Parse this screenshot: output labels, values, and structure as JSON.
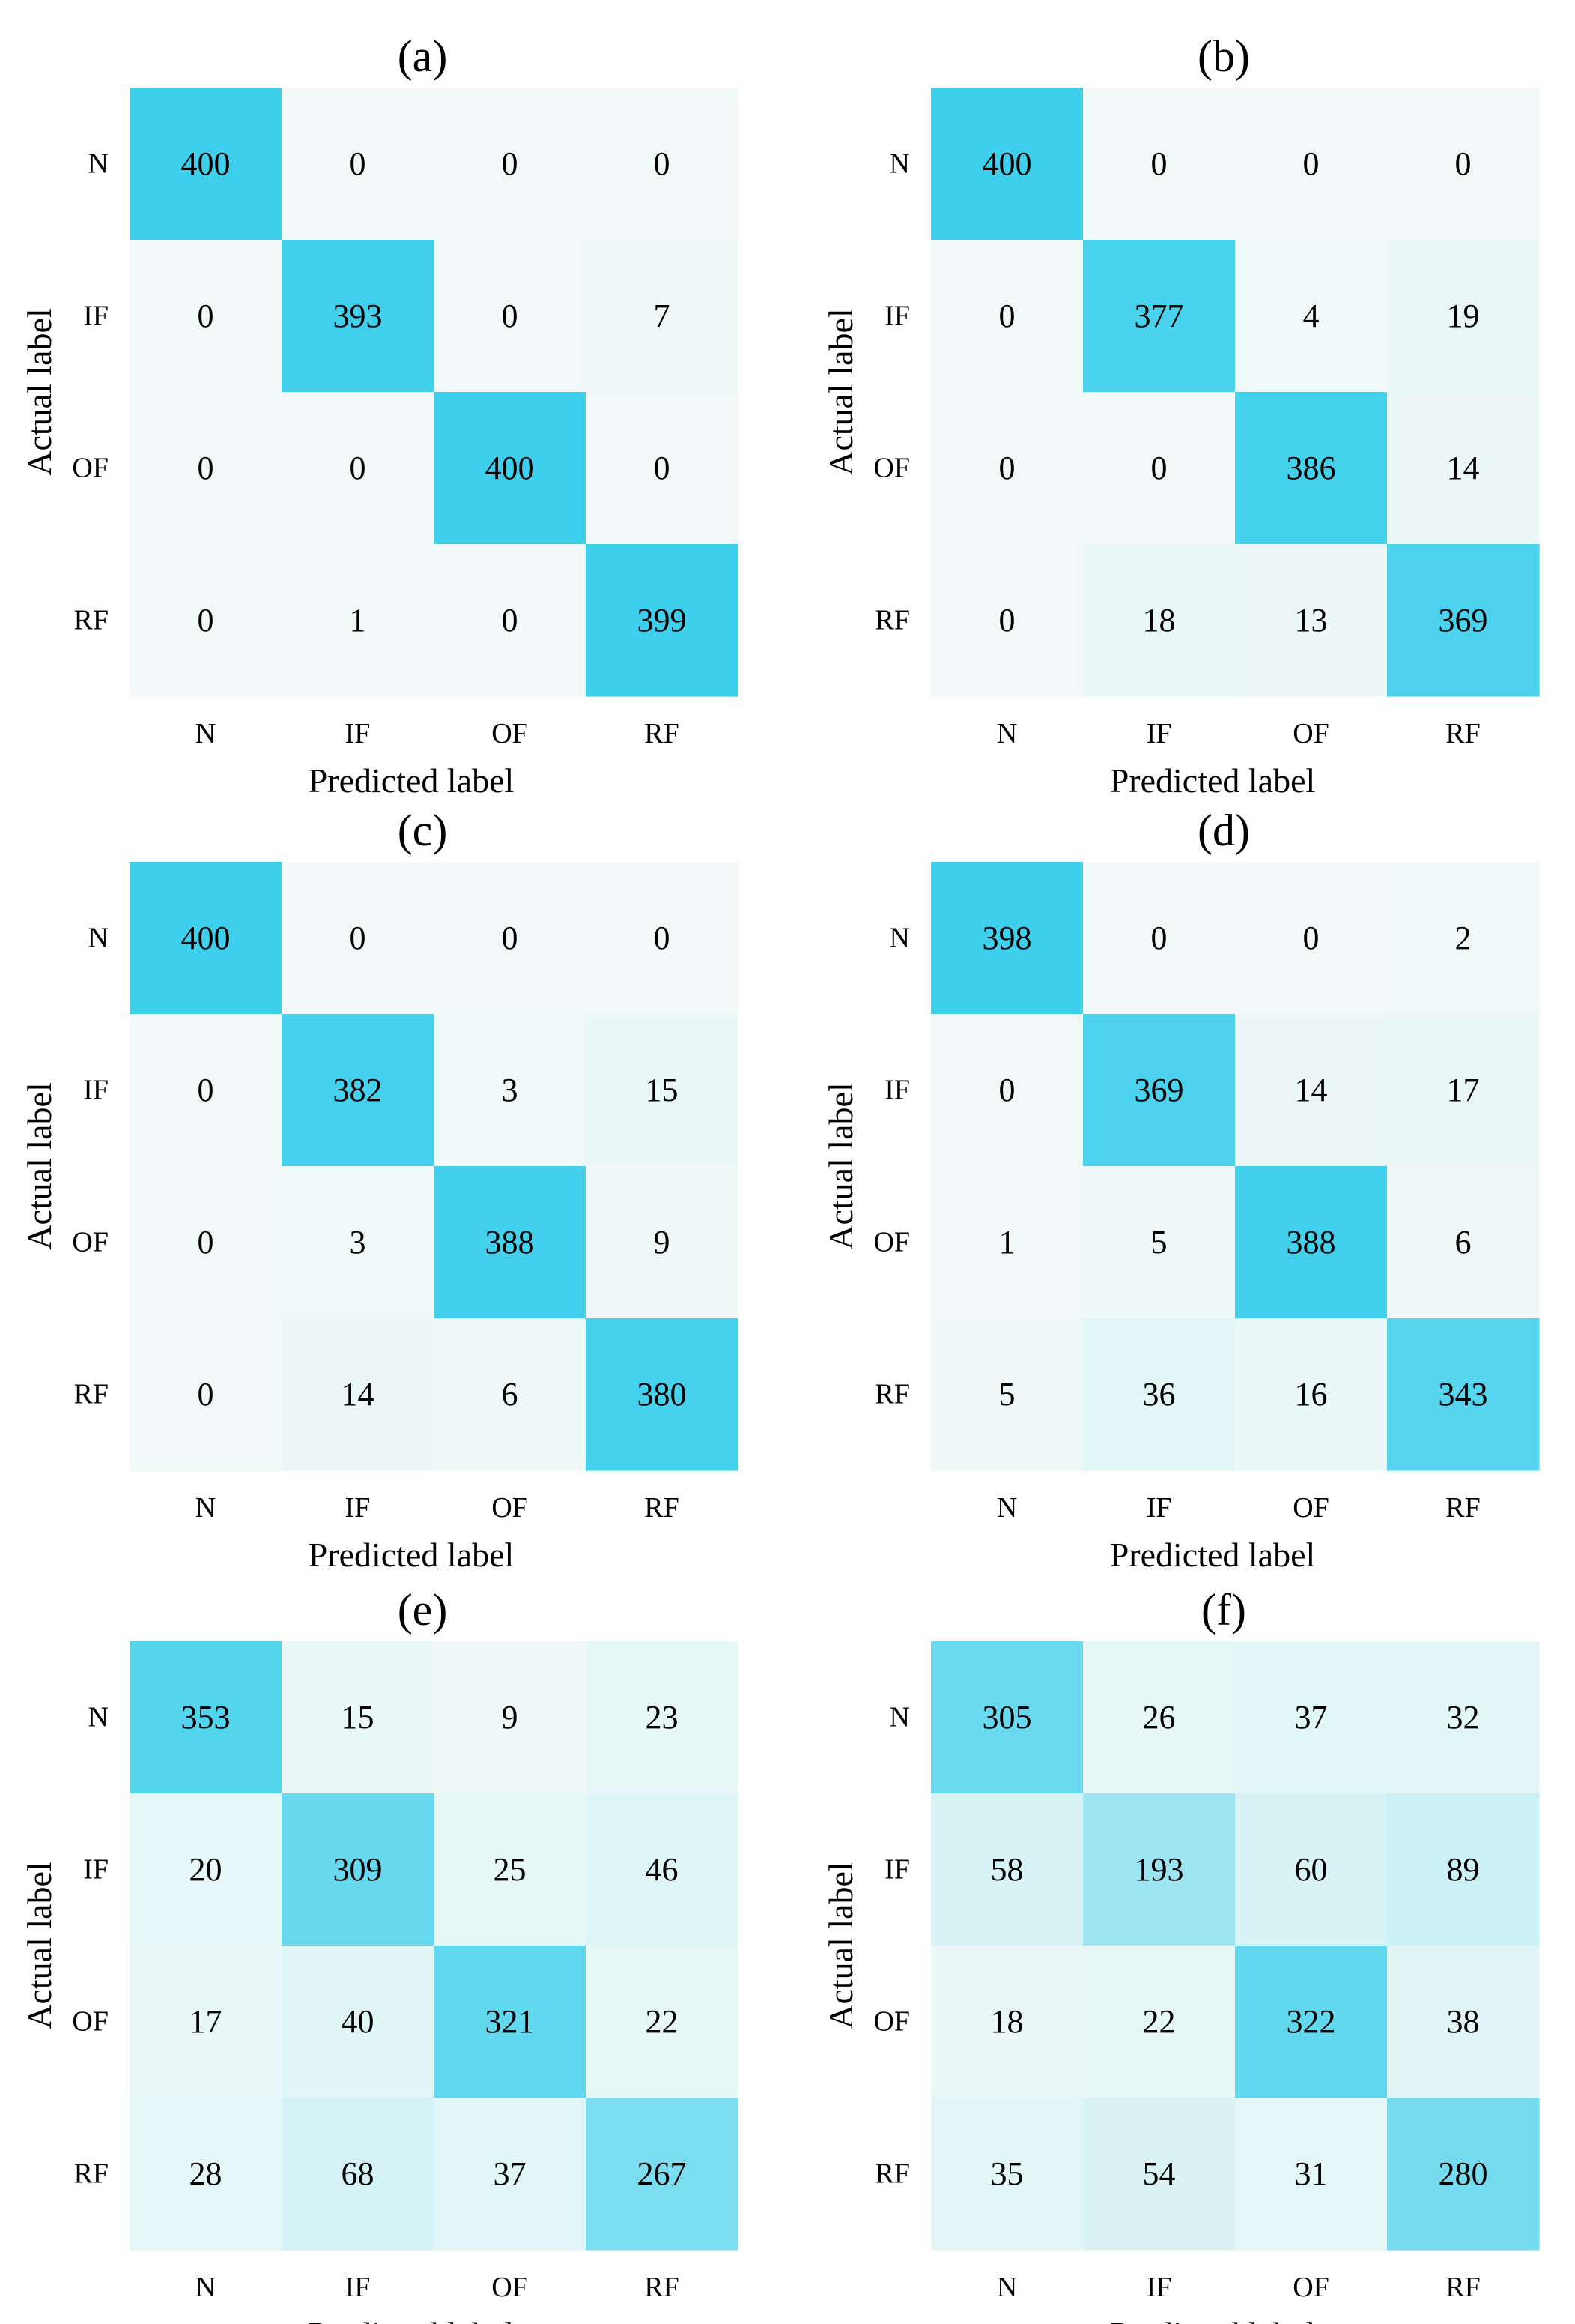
{
  "chart_data": [
    {
      "type": "heatmap",
      "title": "(a)",
      "xlabel": "Predicted label",
      "ylabel": "Actual label",
      "x_categories": [
        "N",
        "IF",
        "OF",
        "RF"
      ],
      "y_categories": [
        "N",
        "IF",
        "OF",
        "RF"
      ],
      "values": [
        [
          400,
          0,
          0,
          0
        ],
        [
          0,
          393,
          0,
          7
        ],
        [
          0,
          0,
          400,
          0
        ],
        [
          0,
          1,
          0,
          399
        ]
      ],
      "vmax": 400,
      "colorbar": false
    },
    {
      "type": "heatmap",
      "title": "(b)",
      "xlabel": "Predicted label",
      "ylabel": "Actual label",
      "x_categories": [
        "N",
        "IF",
        "OF",
        "RF"
      ],
      "y_categories": [
        "N",
        "IF",
        "OF",
        "RF"
      ],
      "values": [
        [
          400,
          0,
          0,
          0
        ],
        [
          0,
          377,
          4,
          19
        ],
        [
          0,
          0,
          386,
          14
        ],
        [
          0,
          18,
          13,
          369
        ]
      ],
      "vmax": 400,
      "colorbar": false
    },
    {
      "type": "heatmap",
      "title": "(c)",
      "xlabel": "Predicted label",
      "ylabel": "Actual label",
      "x_categories": [
        "N",
        "IF",
        "OF",
        "RF"
      ],
      "y_categories": [
        "N",
        "IF",
        "OF",
        "RF"
      ],
      "values": [
        [
          400,
          0,
          0,
          0
        ],
        [
          0,
          382,
          3,
          15
        ],
        [
          0,
          3,
          388,
          9
        ],
        [
          0,
          14,
          6,
          380
        ]
      ],
      "vmax": 400,
      "colorbar": false
    },
    {
      "type": "heatmap",
      "title": "(d)",
      "xlabel": "Predicted label",
      "ylabel": "Actual label",
      "x_categories": [
        "N",
        "IF",
        "OF",
        "RF"
      ],
      "y_categories": [
        "N",
        "IF",
        "OF",
        "RF"
      ],
      "values": [
        [
          398,
          0,
          0,
          2
        ],
        [
          0,
          369,
          14,
          17
        ],
        [
          1,
          5,
          388,
          6
        ],
        [
          5,
          36,
          16,
          343
        ]
      ],
      "vmax": 400,
      "colorbar": false
    },
    {
      "type": "heatmap",
      "title": "(e)",
      "xlabel": "Predicted label",
      "ylabel": "Actual label",
      "x_categories": [
        "N",
        "IF",
        "OF",
        "RF"
      ],
      "y_categories": [
        "N",
        "IF",
        "OF",
        "RF"
      ],
      "values": [
        [
          353,
          15,
          9,
          23
        ],
        [
          20,
          309,
          25,
          46
        ],
        [
          17,
          40,
          321,
          22
        ],
        [
          28,
          68,
          37,
          267
        ]
      ],
      "vmax": 400,
      "colorbar": false
    },
    {
      "type": "heatmap",
      "title": "(f)",
      "xlabel": "Predicted label",
      "ylabel": "Actual label",
      "x_categories": [
        "N",
        "IF",
        "OF",
        "RF"
      ],
      "y_categories": [
        "N",
        "IF",
        "OF",
        "RF"
      ],
      "values": [
        [
          305,
          26,
          37,
          32
        ],
        [
          58,
          193,
          60,
          89
        ],
        [
          18,
          22,
          322,
          38
        ],
        [
          35,
          54,
          31,
          280
        ]
      ],
      "vmax": 400,
      "colorbar": false
    }
  ],
  "colors": {
    "low": "#f0f9f7",
    "high": "#3dcfec",
    "text": "#000000"
  }
}
